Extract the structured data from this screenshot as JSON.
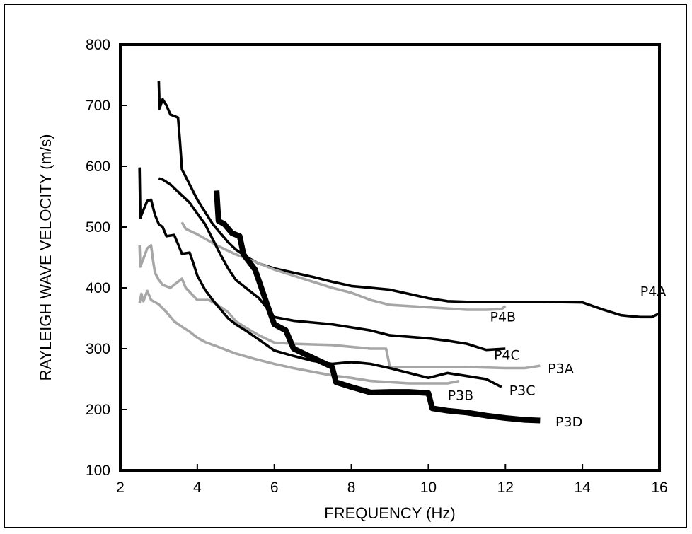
{
  "chart_data": {
    "type": "line",
    "title": "",
    "xlabel": "FREQUENCY (Hz)",
    "ylabel": "RAYLEIGH WAVE VELOCITY (m/s)",
    "xlim": [
      2,
      16
    ],
    "ylim": [
      100,
      800
    ],
    "x_ticks": [
      2,
      4,
      6,
      8,
      10,
      12,
      14,
      16
    ],
    "y_ticks": [
      100,
      200,
      300,
      400,
      500,
      600,
      700,
      800
    ],
    "grid": false,
    "legend": "none (series labeled inline at line ends)",
    "colors": {
      "black": "#000000",
      "gray": "#a6a6a6"
    },
    "series": [
      {
        "name": "P4A",
        "color": "#000000",
        "weight": "medium",
        "points": [
          [
            3.0,
            740
          ],
          [
            3.02,
            695
          ],
          [
            3.1,
            710
          ],
          [
            3.2,
            700
          ],
          [
            3.3,
            685
          ],
          [
            3.5,
            680
          ],
          [
            3.55,
            640
          ],
          [
            3.6,
            595
          ],
          [
            3.8,
            570
          ],
          [
            4.0,
            545
          ],
          [
            4.2,
            525
          ],
          [
            4.4,
            505
          ],
          [
            4.6,
            490
          ],
          [
            4.8,
            475
          ],
          [
            5.0,
            463
          ],
          [
            5.3,
            450
          ],
          [
            5.6,
            440
          ],
          [
            6.0,
            432
          ],
          [
            6.5,
            425
          ],
          [
            7.0,
            418
          ],
          [
            7.5,
            410
          ],
          [
            8.0,
            403
          ],
          [
            9.0,
            397
          ],
          [
            9.5,
            390
          ],
          [
            10.0,
            383
          ],
          [
            10.5,
            378
          ],
          [
            11.0,
            377
          ],
          [
            12.0,
            377
          ],
          [
            13.0,
            377
          ],
          [
            14.0,
            376
          ],
          [
            14.5,
            365
          ],
          [
            15.0,
            355
          ],
          [
            15.5,
            352
          ],
          [
            15.8,
            352
          ],
          [
            16.0,
            358
          ]
        ],
        "label_at": [
          15.5,
          395
        ]
      },
      {
        "name": "P4B",
        "color": "#a6a6a6",
        "weight": "medium",
        "points": [
          [
            3.6,
            508
          ],
          [
            3.7,
            497
          ],
          [
            4.0,
            488
          ],
          [
            4.5,
            470
          ],
          [
            5.0,
            455
          ],
          [
            5.5,
            443
          ],
          [
            6.0,
            430
          ],
          [
            6.5,
            420
          ],
          [
            7.0,
            410
          ],
          [
            7.5,
            400
          ],
          [
            8.0,
            392
          ],
          [
            8.5,
            380
          ],
          [
            9.0,
            372
          ],
          [
            10.0,
            368
          ],
          [
            10.5,
            366
          ],
          [
            11.0,
            364
          ],
          [
            11.5,
            364
          ],
          [
            11.9,
            365
          ],
          [
            12.0,
            370
          ]
        ],
        "label_at": [
          11.6,
          353
        ]
      },
      {
        "name": "P4C",
        "color": "#000000",
        "weight": "medium",
        "points": [
          [
            3.0,
            580
          ],
          [
            3.1,
            578
          ],
          [
            3.3,
            570
          ],
          [
            3.5,
            558
          ],
          [
            3.8,
            540
          ],
          [
            4.0,
            522
          ],
          [
            4.2,
            505
          ],
          [
            4.4,
            480
          ],
          [
            4.6,
            455
          ],
          [
            4.8,
            432
          ],
          [
            5.0,
            413
          ],
          [
            5.3,
            398
          ],
          [
            5.6,
            383
          ],
          [
            6.0,
            352
          ],
          [
            6.5,
            346
          ],
          [
            7.0,
            343
          ],
          [
            7.5,
            340
          ],
          [
            8.0,
            335
          ],
          [
            8.5,
            330
          ],
          [
            9.0,
            322
          ],
          [
            10.0,
            317
          ],
          [
            10.5,
            313
          ],
          [
            11.0,
            308
          ],
          [
            11.5,
            298
          ],
          [
            12.0,
            300
          ]
        ],
        "label_at": [
          11.7,
          290
        ]
      },
      {
        "name": "P3A",
        "color": "#a6a6a6",
        "weight": "medium",
        "points": [
          [
            2.5,
            470
          ],
          [
            2.52,
            435
          ],
          [
            2.6,
            448
          ],
          [
            2.7,
            465
          ],
          [
            2.8,
            470
          ],
          [
            2.85,
            445
          ],
          [
            2.9,
            425
          ],
          [
            3.0,
            413
          ],
          [
            3.1,
            405
          ],
          [
            3.3,
            400
          ],
          [
            3.5,
            410
          ],
          [
            3.6,
            415
          ],
          [
            3.7,
            400
          ],
          [
            4.0,
            380
          ],
          [
            4.3,
            380
          ],
          [
            4.5,
            373
          ],
          [
            4.8,
            360
          ],
          [
            5.0,
            345
          ],
          [
            5.3,
            333
          ],
          [
            5.6,
            322
          ],
          [
            6.0,
            310
          ],
          [
            6.5,
            308
          ],
          [
            7.0,
            307
          ],
          [
            7.5,
            306
          ],
          [
            8.0,
            303
          ],
          [
            8.5,
            300
          ],
          [
            8.9,
            300
          ],
          [
            9.0,
            270
          ],
          [
            9.5,
            270
          ],
          [
            10.0,
            270
          ],
          [
            11.0,
            270
          ],
          [
            12.0,
            268
          ],
          [
            12.5,
            268
          ],
          [
            12.9,
            272
          ]
        ],
        "label_at": [
          13.1,
          268
        ]
      },
      {
        "name": "P3B",
        "color": "#a6a6a6",
        "weight": "medium",
        "points": [
          [
            2.5,
            375
          ],
          [
            2.55,
            390
          ],
          [
            2.6,
            378
          ],
          [
            2.7,
            395
          ],
          [
            2.8,
            380
          ],
          [
            3.0,
            373
          ],
          [
            3.2,
            360
          ],
          [
            3.4,
            345
          ],
          [
            3.6,
            336
          ],
          [
            3.8,
            328
          ],
          [
            4.0,
            318
          ],
          [
            4.2,
            311
          ],
          [
            4.5,
            304
          ],
          [
            5.0,
            292
          ],
          [
            5.5,
            283
          ],
          [
            6.0,
            275
          ],
          [
            6.5,
            268
          ],
          [
            7.0,
            262
          ],
          [
            7.5,
            256
          ],
          [
            8.0,
            252
          ],
          [
            8.5,
            247
          ],
          [
            9.0,
            245
          ],
          [
            9.5,
            243
          ],
          [
            10.0,
            243
          ],
          [
            10.5,
            243
          ],
          [
            10.8,
            247
          ]
        ],
        "label_at": [
          10.5,
          224
        ]
      },
      {
        "name": "P3C",
        "color": "#000000",
        "weight": "medium",
        "points": [
          [
            2.5,
            598
          ],
          [
            2.52,
            515
          ],
          [
            2.6,
            528
          ],
          [
            2.7,
            543
          ],
          [
            2.8,
            545
          ],
          [
            2.9,
            520
          ],
          [
            3.0,
            505
          ],
          [
            3.1,
            500
          ],
          [
            3.2,
            485
          ],
          [
            3.4,
            487
          ],
          [
            3.5,
            472
          ],
          [
            3.6,
            456
          ],
          [
            3.8,
            458
          ],
          [
            3.9,
            440
          ],
          [
            4.0,
            420
          ],
          [
            4.2,
            397
          ],
          [
            4.4,
            380
          ],
          [
            4.6,
            365
          ],
          [
            4.8,
            350
          ],
          [
            5.0,
            340
          ],
          [
            5.3,
            328
          ],
          [
            5.6,
            315
          ],
          [
            6.0,
            297
          ],
          [
            6.5,
            288
          ],
          [
            7.0,
            280
          ],
          [
            7.5,
            275
          ],
          [
            8.0,
            278
          ],
          [
            8.5,
            275
          ],
          [
            9.0,
            268
          ],
          [
            9.5,
            260
          ],
          [
            10.0,
            252
          ],
          [
            10.5,
            260
          ],
          [
            11.0,
            255
          ],
          [
            11.5,
            250
          ],
          [
            11.9,
            237
          ]
        ],
        "label_at": [
          12.1,
          232
        ]
      },
      {
        "name": "P3D",
        "color": "#000000",
        "weight": "thick",
        "points": [
          [
            4.5,
            560
          ],
          [
            4.55,
            510
          ],
          [
            4.7,
            505
          ],
          [
            4.9,
            490
          ],
          [
            5.1,
            485
          ],
          [
            5.2,
            455
          ],
          [
            5.5,
            430
          ],
          [
            5.8,
            375
          ],
          [
            6.0,
            340
          ],
          [
            6.3,
            330
          ],
          [
            6.5,
            300
          ],
          [
            7.0,
            285
          ],
          [
            7.5,
            270
          ],
          [
            7.6,
            245
          ],
          [
            8.0,
            237
          ],
          [
            8.5,
            228
          ],
          [
            9.0,
            229
          ],
          [
            9.5,
            229
          ],
          [
            10.0,
            227
          ],
          [
            10.1,
            202
          ],
          [
            10.5,
            198
          ],
          [
            11.0,
            195
          ],
          [
            11.5,
            190
          ],
          [
            12.0,
            186
          ],
          [
            12.5,
            183
          ],
          [
            12.9,
            182
          ]
        ],
        "label_at": [
          13.3,
          180
        ]
      }
    ]
  }
}
